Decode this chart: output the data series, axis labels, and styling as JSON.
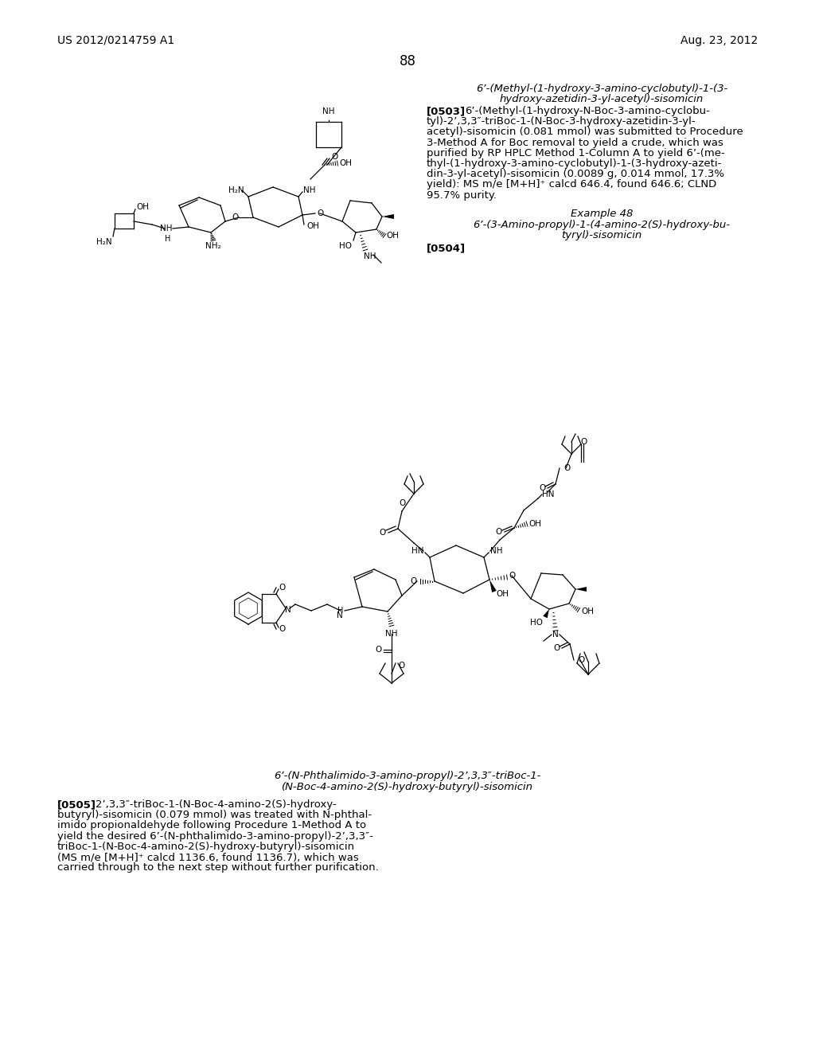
{
  "background_color": "#ffffff",
  "header_left": "US 2012/0214759 A1",
  "header_right": "Aug. 23, 2012",
  "page_number": "88",
  "compound_title_1_line1": "6’-(Methyl-(1-hydroxy-3-amino-cyclobutyl)-1-(3-",
  "compound_title_1_line2": "hydroxy-azetidin-3-yl-acetyl)-sisomicin",
  "para_0503_label": "[0503]",
  "para_0503_lines": [
    "6’-(Methyl-(1-hydroxy-N-Boc-3-amino-cyclobu-",
    "tyl)-2’,3,3″-triBoc-1-(N-Boc-3-hydroxy-azetidin-3-yl-",
    "acetyl)-sisomicin (0.081 mmol) was submitted to Procedure",
    "3-Method A for Boc removal to yield a crude, which was",
    "purified by RP HPLC Method 1-Column A to yield 6’-(me-",
    "thyl-(1-hydroxy-3-amino-cyclobutyl)-1-(3-hydroxy-azeti-",
    "din-3-yl-acetyl)-sisomicin (0.0089 g, 0.014 mmol, 17.3%",
    "yield): MS m/e [M+H]⁺ calcd 646.4, found 646.6; CLND",
    "95.7% purity."
  ],
  "example_48_title": "Example 48",
  "example_48_sub1": "6’-(3-Amino-propyl)-1-(4-amino-2(S)-hydroxy-bu-",
  "example_48_sub2": "tyryl)-sisomicin",
  "para_0504_label": "[0504]",
  "compound_title_2_line1": "6’-(N-Phthalimido-3-amino-propyl)-2’,3,3″-triBoc-1-",
  "compound_title_2_line2": "(N-Boc-4-amino-2(S)-hydroxy-butyryl)-sisomicin",
  "para_0505_label": "[0505]",
  "para_0505_lines": [
    "2’,3,3″-triBoc-1-(N-Boc-4-amino-2(S)-hydroxy-",
    "butyryl)-sisomicin (0.079 mmol) was treated with N-phthal-",
    "imido propionaldehyde following Procedure 1-Method A to",
    "yield the desired 6’-(N-phthalimido-3-amino-propyl)-2’,3,3″-",
    "triBoc-1-(N-Boc-4-amino-2(S)-hydroxy-butyryl)-sisomicin",
    "(MS m/e [M+H]⁺ calcd 1136.6, found 1136.7), which was",
    "carried through to the next step without further purification."
  ]
}
